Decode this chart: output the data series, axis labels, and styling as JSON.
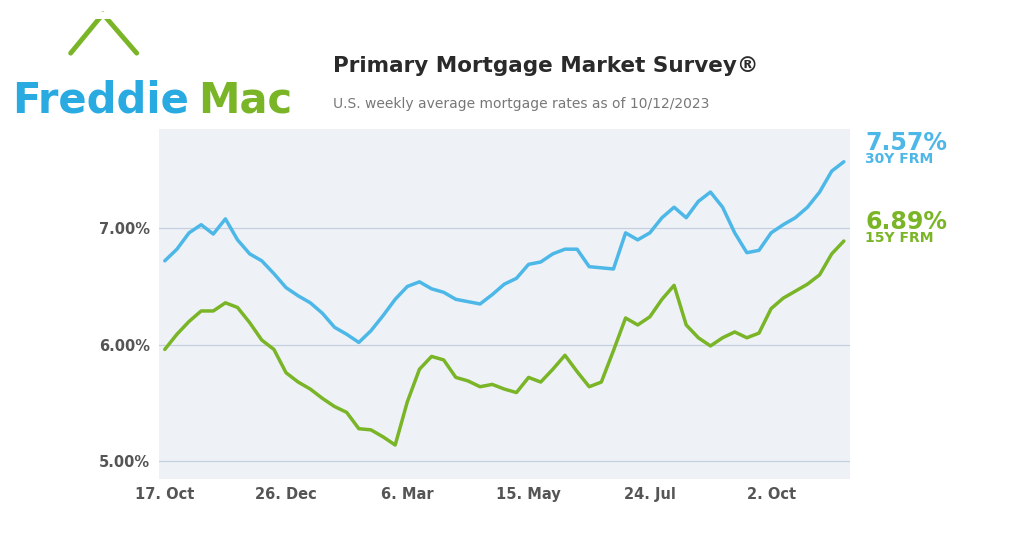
{
  "title": "Primary Mortgage Market Survey®",
  "subtitle": "U.S. weekly average mortgage rates as of 10/12/2023",
  "plot_bg_color": "#eef2f7",
  "color_30y": "#4db8e8",
  "color_15y": "#7ab527",
  "label_30y": "7.57%",
  "label_30y_sub": "30Y FRM",
  "label_15y": "6.89%",
  "label_15y_sub": "15Y FRM",
  "ylim": [
    4.85,
    7.85
  ],
  "yticks": [
    5.0,
    6.0,
    7.0
  ],
  "ytick_labels": [
    "5.00%",
    "6.00%",
    "7.00%"
  ],
  "xtick_labels": [
    "17. Oct",
    "26. Dec",
    "6. Mar",
    "15. May",
    "24. Jul",
    "2. Oct"
  ],
  "xtick_positions": [
    0,
    10,
    20,
    30,
    40,
    50
  ],
  "freddie_blue": "#29abe2",
  "freddie_green": "#7ab527",
  "line_width": 2.5,
  "data_30y": [
    6.72,
    6.82,
    6.96,
    7.03,
    6.95,
    7.08,
    6.9,
    6.78,
    6.72,
    6.61,
    6.49,
    6.42,
    6.36,
    6.27,
    6.15,
    6.09,
    6.02,
    6.12,
    6.25,
    6.39,
    6.5,
    6.54,
    6.48,
    6.45,
    6.39,
    6.37,
    6.35,
    6.43,
    6.52,
    6.57,
    6.69,
    6.71,
    6.78,
    6.82,
    6.82,
    6.67,
    6.66,
    6.65,
    6.96,
    6.9,
    6.96,
    7.09,
    7.18,
    7.09,
    7.23,
    7.31,
    7.18,
    6.96,
    6.79,
    6.81,
    6.96,
    7.03,
    7.09,
    7.18,
    7.31,
    7.49,
    7.57
  ],
  "data_15y": [
    5.96,
    6.09,
    6.2,
    6.29,
    6.29,
    6.36,
    6.32,
    6.19,
    6.04,
    5.96,
    5.76,
    5.68,
    5.62,
    5.54,
    5.47,
    5.42,
    5.28,
    5.27,
    5.21,
    5.14,
    5.51,
    5.79,
    5.9,
    5.87,
    5.72,
    5.69,
    5.64,
    5.66,
    5.62,
    5.59,
    5.72,
    5.68,
    5.79,
    5.91,
    5.77,
    5.64,
    5.68,
    5.95,
    6.23,
    6.17,
    6.24,
    6.39,
    6.51,
    6.17,
    6.06,
    5.99,
    6.06,
    6.11,
    6.06,
    6.1,
    6.31,
    6.4,
    6.46,
    6.52,
    6.6,
    6.78,
    6.89
  ],
  "n_points": 57
}
